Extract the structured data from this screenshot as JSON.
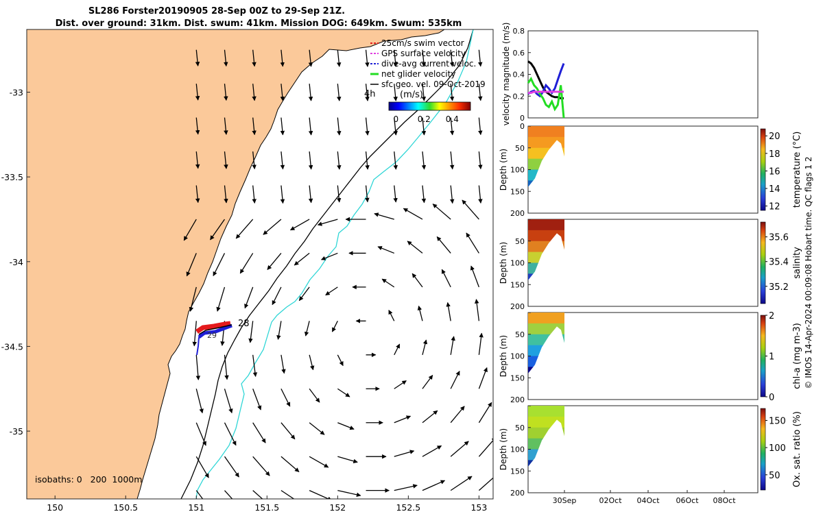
{
  "title": {
    "line1": "SL286 Forster20190905 28-Sep 00Z to 29-Sep 21Z.",
    "line2": "Dist. over ground: 31km. Dist. swum: 41km. Mission DOG: 649km. Swum: 535km"
  },
  "credit": "© IMOS 14-Apr-2024 00:09:08 Hobart time. QC flags 1  2",
  "colors": {
    "land": "#fbc99a",
    "isobath_200": "#000000",
    "isobath_1000": "#2ed6d6",
    "swim_vector": "#e41a1c",
    "gps_velocity": "#e040e0",
    "dive_avg": "#1f1fd6",
    "net_velocity": "#22dd22",
    "sfc_geo": "#000000"
  },
  "chart_data": [
    {
      "type": "map",
      "xlim": [
        149.8,
        153.1
      ],
      "ylim": [
        -35.4,
        -32.63
      ],
      "xticks": [
        150,
        150.5,
        151,
        151.5,
        152,
        152.5,
        153
      ],
      "xtick_labels": [
        "150",
        "150.5",
        "151",
        "151.5",
        "152",
        "152.5",
        "153"
      ],
      "yticks": [
        -33,
        -33.5,
        -34,
        -34.5,
        -35
      ],
      "ytick_labels": [
        "-33",
        "-33.5",
        "-34",
        "-34.5",
        "-35"
      ],
      "legend": {
        "position": "top-right",
        "entries": [
          "25cm/s swim vector",
          "GPS surface velocity",
          "dive-avg current veloc.",
          "net glider velocity",
          "sfc geo. vel. 09-Oct-2019"
        ]
      },
      "colorbar": {
        "label": "(m/s)",
        "ticks": [
          "0",
          "0.2",
          "0.4"
        ],
        "range": [
          -0.05,
          0.53
        ]
      },
      "annotations": {
        "time_marker": "4h",
        "track_start": "28",
        "track_end": "29"
      },
      "isobath_label": "isobaths: 0   200  1000m",
      "glider_track": {
        "start": [
          151.2,
          -34.43
        ],
        "end": [
          151.02,
          -34.48
        ]
      }
    },
    {
      "type": "line",
      "ylabel": "velocity magnitude (m/s)",
      "ylim": [
        0,
        0.8
      ],
      "yticks": [
        "0",
        "0.2",
        "0.4",
        "0.6",
        "0.8"
      ],
      "series": [
        {
          "color": "#000000",
          "values": [
            0.52,
            0.5,
            0.46,
            0.4,
            0.34,
            0.28,
            0.24,
            0.22,
            0.2,
            0.19,
            0.19,
            0.18,
            0.18
          ]
        },
        {
          "color": "#1f1fd6",
          "values": [
            0.22,
            0.24,
            0.25,
            0.22,
            0.2,
            0.24,
            0.3,
            0.27,
            0.23,
            0.27,
            0.35,
            0.43,
            0.5
          ]
        },
        {
          "color": "#22dd22",
          "values": [
            0.32,
            0.36,
            0.3,
            0.27,
            0.22,
            0.18,
            0.12,
            0.1,
            0.15,
            0.08,
            0.12,
            0.3,
            0.0
          ]
        },
        {
          "color": "#e040e0",
          "values": [
            0.23,
            0.23,
            0.24,
            0.24,
            0.24,
            0.24,
            0.24,
            0.24,
            0.24,
            0.24,
            0.24,
            0.24,
            0.24
          ]
        }
      ]
    },
    {
      "type": "heatmap",
      "variable": "temperature (°C)",
      "ylabel": "Depth (m)",
      "yticks": [
        "0",
        "50",
        "100",
        "150",
        "200"
      ],
      "colorbar_ticks": [
        "12",
        "14",
        "16",
        "18",
        "20"
      ],
      "crange": [
        11.5,
        20.8
      ]
    },
    {
      "type": "heatmap",
      "variable": "salinity",
      "ylabel": "Depth (m)",
      "yticks": [
        "",
        "50",
        "100",
        "150",
        "200"
      ],
      "colorbar_ticks": [
        "35.2",
        "35.4",
        "35.6"
      ],
      "crange": [
        35.06,
        35.72
      ]
    },
    {
      "type": "heatmap",
      "variable": "chl-a (mg m-3)",
      "ylabel": "Depth (m)",
      "yticks": [
        "",
        "50",
        "100",
        "150",
        "200"
      ],
      "colorbar_ticks": [
        "0",
        "1",
        "2"
      ],
      "crange": [
        0,
        2
      ]
    },
    {
      "type": "heatmap",
      "variable": "Ox. sat. ratio (%)",
      "ylabel": "Depth (m)",
      "yticks": [
        "",
        "50",
        "100",
        "150",
        "200"
      ],
      "colorbar_ticks": [
        "50",
        "100",
        "150"
      ],
      "crange": [
        22,
        172
      ],
      "xtick_labels": [
        "30Sep",
        "02Oct",
        "04Oct",
        "06Oct",
        "08Oct"
      ]
    }
  ]
}
